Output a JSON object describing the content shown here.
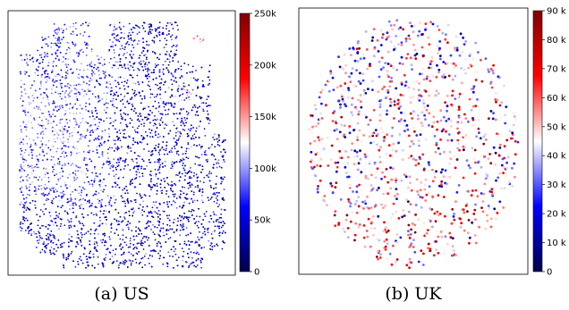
{
  "chart_data": [
    {
      "type": "scatter",
      "caption": "(a) US",
      "colormap": "seismic",
      "colorbar": {
        "range": [
          0,
          250000
        ],
        "ticks": [
          0,
          50000,
          100000,
          150000,
          200000,
          250000
        ],
        "tick_labels": [
          "0",
          "50k",
          "100k",
          "150k",
          "200k",
          "250k"
        ]
      },
      "axes": {
        "ticks_visible": false,
        "grid": false
      },
      "points": "dense cloud (~15,000 embedding points) coloured by value; left cluster mostly 80k–150k, right side mostly 0–50k"
    },
    {
      "type": "scatter",
      "caption": "(b) UK",
      "colormap": "seismic",
      "colorbar": {
        "range": [
          0,
          90000
        ],
        "ticks": [
          0,
          10000,
          20000,
          30000,
          40000,
          50000,
          60000,
          70000,
          80000,
          90000
        ],
        "tick_labels": [
          "0",
          "10 k",
          "20 k",
          "30 k",
          "40 k",
          "50 k",
          "60 k",
          "70 k",
          "80 k",
          "90 k"
        ]
      },
      "axes": {
        "ticks_visible": false,
        "grid": false
      },
      "points": "sparse roughly circular cloud (~1,100 points) with mixed values; lower region leans toward 60k–80k"
    }
  ],
  "colors": {
    "low": "#00004c",
    "mid": "#ffffff",
    "high": "#800000",
    "frame": "#000000"
  }
}
